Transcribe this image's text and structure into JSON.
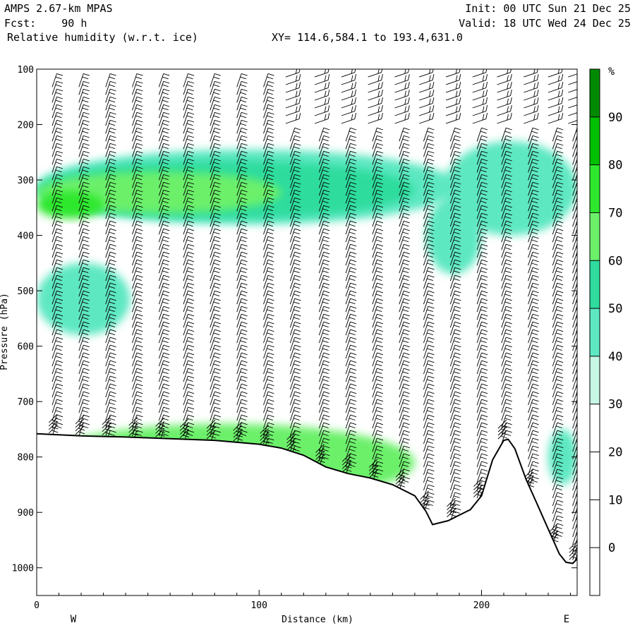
{
  "header": {
    "model": "AMPS 2.67-km MPAS",
    "forecast": "Fcst:    90 h",
    "field": "Relative humidity (w.r.t. ice)",
    "init": "Init: 00 UTC Sun 21 Dec 25",
    "valid": "Valid: 18 UTC Wed 24 Dec 25",
    "xy": "XY= 114.6,584.1 to 193.4,631.0"
  },
  "chart_data": {
    "type": "heatmap",
    "xlabel": "Distance (km)",
    "ylabel": "Pressure (hPa)",
    "xlim": [
      0,
      243
    ],
    "ylim": [
      1050,
      100
    ],
    "x_ticks": [
      0,
      100,
      200
    ],
    "y_ticks": [
      100,
      200,
      300,
      400,
      500,
      600,
      700,
      800,
      900,
      1000
    ],
    "left_end_label": "W",
    "right_end_label": "E",
    "colorbar": {
      "unit": "%",
      "levels": [
        0,
        10,
        20,
        30,
        40,
        50,
        60,
        70,
        80,
        90
      ],
      "colors": [
        "#ffffff",
        "#ffffff",
        "#ffffff",
        "#ffffff",
        "#c6f6e4",
        "#5de8c2",
        "#2fdc9e",
        "#6cf06a",
        "#2ee82e",
        "#00c000",
        "#008a00"
      ]
    },
    "terrain": {
      "distance_km": [
        0,
        20,
        40,
        60,
        80,
        100,
        110,
        120,
        130,
        140,
        150,
        160,
        170,
        175,
        178,
        185,
        190,
        195,
        200,
        205,
        210,
        212,
        215,
        220,
        225,
        230,
        235,
        238,
        241,
        243
      ],
      "pressure_hpa": [
        758,
        762,
        764,
        767,
        770,
        777,
        784,
        797,
        818,
        830,
        838,
        850,
        870,
        898,
        922,
        915,
        905,
        895,
        870,
        805,
        770,
        768,
        785,
        840,
        885,
        930,
        975,
        990,
        992,
        984
      ]
    },
    "rh_features": [
      {
        "level_pct": 40,
        "x_range_km": [
          0,
          190
        ],
        "p_range_hpa": [
          245,
          380
        ]
      },
      {
        "level_pct": 50,
        "x_range_km": [
          0,
          170
        ],
        "p_range_hpa": [
          265,
          370
        ]
      },
      {
        "level_pct": 60,
        "x_range_km": [
          0,
          110
        ],
        "p_range_hpa": [
          285,
          360
        ]
      },
      {
        "level_pct": 70,
        "x_range_km": [
          0,
          30
        ],
        "p_range_hpa": [
          320,
          370
        ]
      },
      {
        "level_pct": 40,
        "x_range_km": [
          0,
          42
        ],
        "p_range_hpa": [
          450,
          580
        ]
      },
      {
        "level_pct": 40,
        "x_range_km": [
          175,
          200
        ],
        "p_range_hpa": [
          330,
          470
        ]
      },
      {
        "level_pct": 40,
        "x_range_km": [
          183,
          243
        ],
        "p_range_hpa": [
          230,
          400
        ]
      },
      {
        "level_pct": 40,
        "x_range_km": [
          230,
          243
        ],
        "p_range_hpa": [
          750,
          850
        ]
      },
      {
        "level_pct": 60,
        "x_range_km": [
          0,
          170
        ],
        "p_range_hpa": [
          740,
          880
        ]
      }
    ],
    "wind_barb_columns_km": [
      8,
      20,
      32,
      44,
      56,
      67,
      79,
      91,
      103,
      115,
      128,
      140,
      152,
      164,
      175,
      187,
      199,
      210,
      222,
      233,
      242
    ]
  }
}
